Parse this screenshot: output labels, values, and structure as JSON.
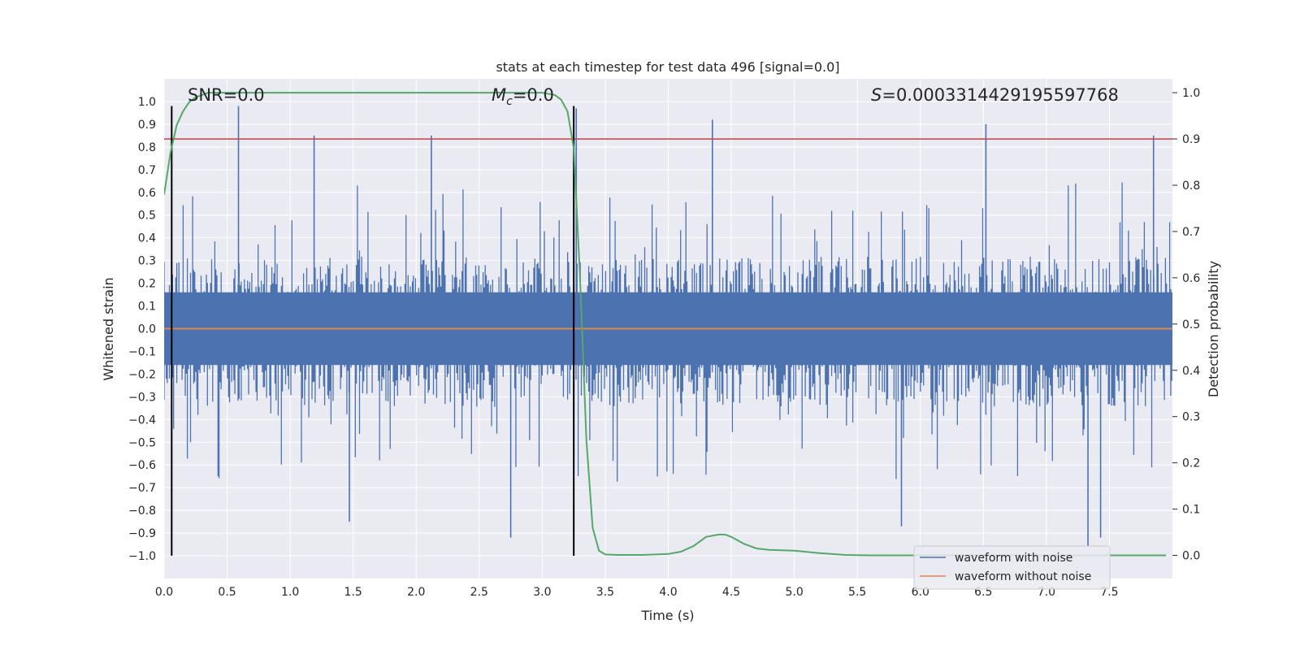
{
  "chart_data": {
    "type": "line",
    "title": "stats at each timestep for test data 496 [signal=0.0]",
    "xlabel": "Time (s)",
    "ylabel": "Whitened strain",
    "y2label": "Detection probability",
    "xlim": [
      0.0,
      8.0
    ],
    "ylim": [
      -1.1,
      1.1
    ],
    "y2lim": [
      -0.05,
      1.03
    ],
    "xticks": [
      "0.0",
      "0.5",
      "1.0",
      "1.5",
      "2.0",
      "2.5",
      "3.0",
      "3.5",
      "4.0",
      "4.5",
      "5.0",
      "5.5",
      "6.0",
      "6.5",
      "7.0",
      "7.5"
    ],
    "yticks": [
      "1.0",
      "0.9",
      "0.8",
      "0.7",
      "0.6",
      "0.5",
      "0.4",
      "0.3",
      "0.2",
      "0.1",
      "0.0",
      "−0.1",
      "−0.2",
      "−0.3",
      "−0.4",
      "−0.5",
      "−0.6",
      "−0.7",
      "−0.8",
      "−0.9",
      "−1.0"
    ],
    "y2ticks": [
      "1.0",
      "0.9",
      "0.8",
      "0.7",
      "0.6",
      "0.5",
      "0.4",
      "0.3",
      "0.2",
      "0.1",
      "0.0"
    ],
    "annotations": {
      "snr_name": "SNR",
      "snr_value": "=0.0",
      "mc_name": "M",
      "mc_sub": "c",
      "mc_value": "=0.0",
      "s_name": "S",
      "s_value": "=0.0003314429195597768"
    },
    "vlines_x": [
      0.06,
      3.25
    ],
    "hline_y2": 0.9,
    "noise_envelope": {
      "x_start": 0.0,
      "x_end": 8.0,
      "typical_upper": 0.35,
      "typical_lower": -0.38,
      "spikes": [
        {
          "x": 0.59,
          "y": 0.98
        },
        {
          "x": 1.19,
          "y": 0.85
        },
        {
          "x": 2.12,
          "y": 0.85
        },
        {
          "x": 3.27,
          "y": 0.97
        },
        {
          "x": 4.35,
          "y": 0.92
        },
        {
          "x": 6.52,
          "y": 0.9
        },
        {
          "x": 7.85,
          "y": 0.85
        },
        {
          "x": 2.75,
          "y": -0.92
        },
        {
          "x": 1.47,
          "y": -0.85
        },
        {
          "x": 5.85,
          "y": -0.87
        },
        {
          "x": 7.33,
          "y": -0.96
        },
        {
          "x": 7.43,
          "y": -0.92
        }
      ]
    },
    "series": [
      {
        "name": "waveform with noise",
        "color": "#4c72b0",
        "axis": "left"
      },
      {
        "name": "waveform without noise",
        "color": "#dd8452",
        "axis": "left",
        "x": [
          0.0,
          8.0
        ],
        "y": [
          0.0,
          0.0
        ]
      },
      {
        "name": "detection probability",
        "color": "#55a868",
        "axis": "right",
        "x": [
          0.0,
          0.05,
          0.1,
          0.15,
          0.2,
          0.25,
          0.3,
          0.35,
          0.5,
          1.0,
          1.5,
          2.0,
          2.5,
          3.0,
          3.1,
          3.15,
          3.2,
          3.25,
          3.3,
          3.35,
          3.4,
          3.45,
          3.5,
          3.6,
          3.8,
          4.0,
          4.1,
          4.2,
          4.3,
          4.4,
          4.45,
          4.5,
          4.6,
          4.7,
          4.8,
          5.0,
          5.2,
          5.4,
          5.6,
          6.0,
          7.0,
          7.95
        ],
        "y": [
          0.78,
          0.87,
          0.93,
          0.96,
          0.98,
          0.99,
          0.995,
          1.0,
          1.0,
          1.0,
          1.0,
          1.0,
          1.0,
          1.0,
          0.995,
          0.985,
          0.96,
          0.88,
          0.6,
          0.25,
          0.06,
          0.01,
          0.002,
          0.001,
          0.001,
          0.003,
          0.008,
          0.02,
          0.04,
          0.045,
          0.045,
          0.04,
          0.025,
          0.015,
          0.012,
          0.01,
          0.005,
          0.001,
          0.0,
          0.0,
          0.0,
          0.0
        ]
      }
    ],
    "legend": {
      "placement": "bottom-right",
      "entries": [
        "waveform with noise",
        "waveform without noise"
      ]
    }
  },
  "colors": {
    "plot_bg": "#eaeaf2",
    "grid": "#ffffff",
    "vline": "#000000",
    "hline": "#c44e52",
    "noise": "#4c72b0",
    "clean": "#dd8452",
    "prob": "#55a868"
  }
}
